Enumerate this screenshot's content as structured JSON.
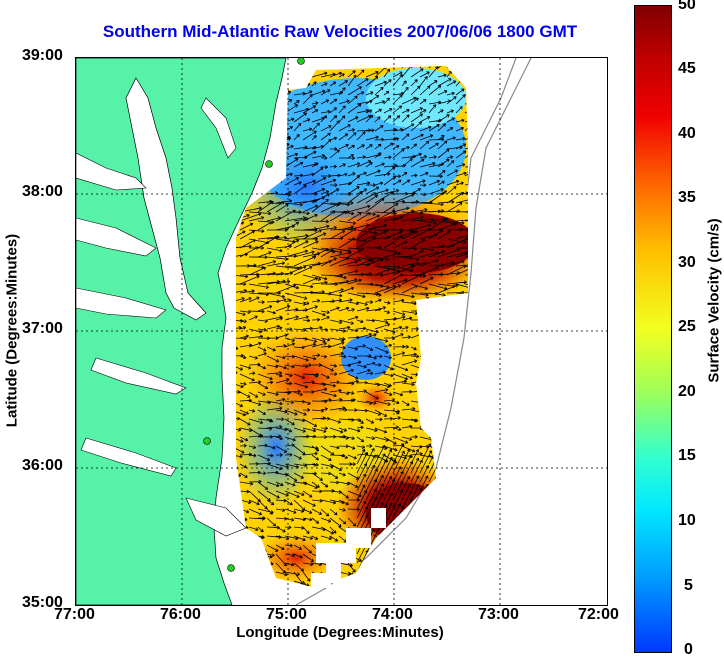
{
  "title": "Southern Mid-Atlantic Raw Velocities 2007/06/06 1800 GMT",
  "x_axis": {
    "label": "Longitude (Degrees:Minutes)",
    "ticks": [
      "77:00",
      "76:00",
      "75:00",
      "74:00",
      "73:00",
      "72:00"
    ]
  },
  "y_axis": {
    "label": "Latitude (Degrees:Minutes)",
    "ticks": [
      "39:00",
      "38:00",
      "37:00",
      "36:00",
      "35:00"
    ]
  },
  "colorbar": {
    "label": "Surface Velocity (cm/s)",
    "ticks": [
      "50",
      "45",
      "40",
      "35",
      "30",
      "25",
      "20",
      "15",
      "10",
      "5",
      "0"
    ],
    "min": 0,
    "max": 50
  },
  "colors": {
    "land": "#55f2a8",
    "title": "#0000ee",
    "stations": "#22cc22"
  },
  "map": {
    "lon_range": [
      -77,
      -72
    ],
    "lat_range": [
      35,
      39
    ],
    "grid": "dotted",
    "arrows": "black"
  }
}
